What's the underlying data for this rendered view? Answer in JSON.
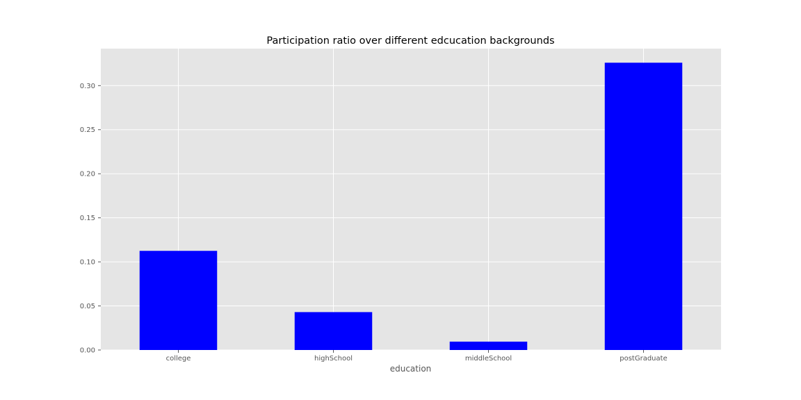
{
  "chart_data": {
    "type": "bar",
    "title": "Participation ratio over different edcucation backgrounds",
    "xlabel": "education",
    "ylabel": "",
    "categories": [
      "college",
      "highSchool",
      "middleSchool",
      "postGraduate"
    ],
    "values": [
      0.1125,
      0.043,
      0.0095,
      0.326
    ],
    "ylim": [
      0,
      0.342
    ],
    "yticks": [
      0.0,
      0.05,
      0.1,
      0.15,
      0.2,
      0.25,
      0.3
    ],
    "ytick_labels": [
      "0.00",
      "0.05",
      "0.10",
      "0.15",
      "0.20",
      "0.25",
      "0.30"
    ],
    "grid": true,
    "legend": "none",
    "colors": {
      "bar": "#0000ff",
      "plot_background": "#e5e5e5",
      "grid": "#ffffff",
      "tick_label": "#555555"
    }
  }
}
